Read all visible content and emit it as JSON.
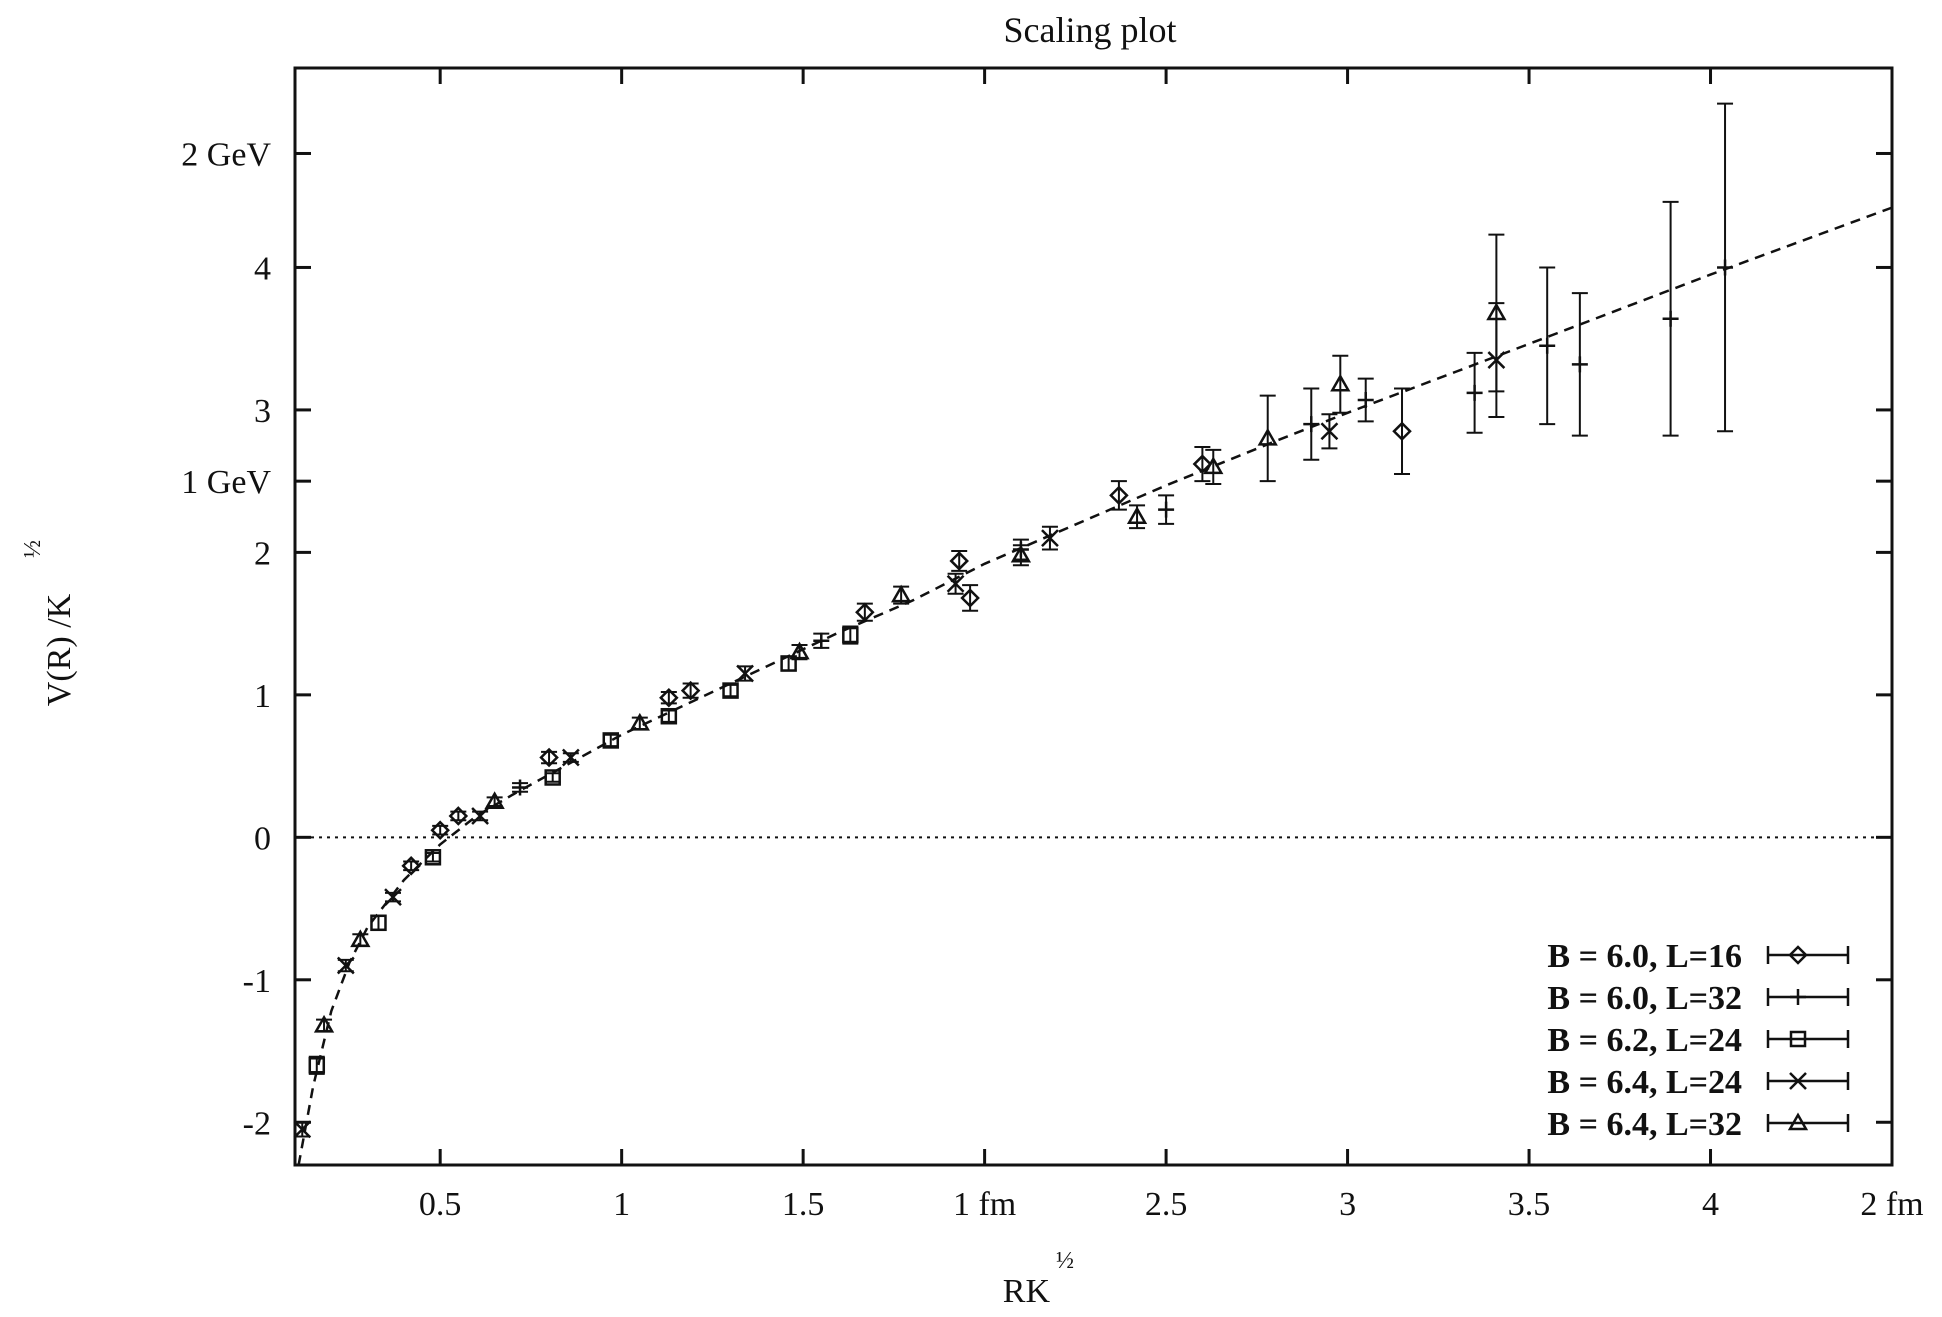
{
  "chart_data": {
    "type": "scatter",
    "title": "Scaling plot",
    "xlabel": "RK",
    "xlabel_exponent": "½",
    "ylabel": "V(R) /K",
    "ylabel_exponent": "½",
    "xlim": [
      0.1,
      4.5
    ],
    "ylim": [
      -2.3,
      5.4
    ],
    "x_ticks": [
      {
        "value": 0.5,
        "label": "0.5"
      },
      {
        "value": 1,
        "label": "1"
      },
      {
        "value": 1.5,
        "label": "1.5"
      },
      {
        "value": 2,
        "label": "1 fm"
      },
      {
        "value": 2.5,
        "label": "2.5"
      },
      {
        "value": 3,
        "label": "3"
      },
      {
        "value": 3.5,
        "label": "3.5"
      },
      {
        "value": 4,
        "label": "4"
      },
      {
        "value": 4.5,
        "label": "2 fm"
      }
    ],
    "y_ticks": [
      {
        "value": -2,
        "label": "-2"
      },
      {
        "value": -1,
        "label": "-1"
      },
      {
        "value": 0,
        "label": "0"
      },
      {
        "value": 1,
        "label": "1"
      },
      {
        "value": 2,
        "label": "2"
      },
      {
        "value": 2.5,
        "label": "1 GeV"
      },
      {
        "value": 3,
        "label": "3"
      },
      {
        "value": 4,
        "label": "4"
      },
      {
        "value": 4.8,
        "label": "2 GeV"
      }
    ],
    "legend_position": "bottom-right",
    "zero_line": true,
    "fit_curve": {
      "style": "dashed",
      "x": [
        0.11,
        0.15,
        0.2,
        0.25,
        0.3,
        0.4,
        0.5,
        0.6,
        0.7,
        0.8,
        1.0,
        1.2,
        1.4,
        1.6,
        1.8,
        2.0,
        2.2,
        2.5,
        2.8,
        3.0,
        3.3,
        3.6,
        4.0,
        4.5
      ],
      "y": [
        -2.3,
        -1.75,
        -1.22,
        -0.88,
        -0.63,
        -0.3,
        -0.05,
        0.15,
        0.3,
        0.44,
        0.72,
        0.96,
        1.2,
        1.44,
        1.66,
        1.92,
        2.14,
        2.47,
        2.78,
        2.98,
        3.27,
        3.56,
        3.95,
        4.42
      ]
    },
    "series": [
      {
        "name": "B = 6.0, L=16",
        "marker": "diamond",
        "points": [
          {
            "x": 0.42,
            "y": -0.2,
            "err": 0.03
          },
          {
            "x": 0.5,
            "y": 0.05,
            "err": 0.03
          },
          {
            "x": 0.55,
            "y": 0.15,
            "err": 0.03
          },
          {
            "x": 0.8,
            "y": 0.56,
            "err": 0.04
          },
          {
            "x": 1.13,
            "y": 0.98,
            "err": 0.04
          },
          {
            "x": 1.19,
            "y": 1.03,
            "err": 0.05
          },
          {
            "x": 1.67,
            "y": 1.58,
            "err": 0.06
          },
          {
            "x": 1.93,
            "y": 1.94,
            "err": 0.07
          },
          {
            "x": 1.96,
            "y": 1.68,
            "err": 0.09
          },
          {
            "x": 2.37,
            "y": 2.4,
            "err": 0.1
          },
          {
            "x": 2.6,
            "y": 2.62,
            "err": 0.12
          },
          {
            "x": 3.15,
            "y": 2.85,
            "err": 0.3
          }
        ]
      },
      {
        "name": "B = 6.0, L=32",
        "marker": "plus",
        "points": [
          {
            "x": 0.72,
            "y": 0.35,
            "err": 0.03
          },
          {
            "x": 1.55,
            "y": 1.38,
            "err": 0.05
          },
          {
            "x": 2.1,
            "y": 2.02,
            "err": 0.07
          },
          {
            "x": 2.5,
            "y": 2.3,
            "err": 0.1
          },
          {
            "x": 2.9,
            "y": 2.9,
            "err": 0.25
          },
          {
            "x": 3.05,
            "y": 3.07,
            "err": 0.15
          },
          {
            "x": 3.35,
            "y": 3.12,
            "err": 0.28
          },
          {
            "x": 3.55,
            "y": 3.45,
            "err": 0.55
          },
          {
            "x": 3.64,
            "y": 3.32,
            "err": 0.5
          },
          {
            "x": 3.89,
            "y": 3.64,
            "err": 0.82
          },
          {
            "x": 4.04,
            "y": 4.0,
            "err": 1.15
          }
        ]
      },
      {
        "name": "B = 6.2, L=24",
        "marker": "square",
        "points": [
          {
            "x": 0.16,
            "y": -1.6,
            "err": 0.06
          },
          {
            "x": 0.33,
            "y": -0.6,
            "err": 0.05
          },
          {
            "x": 0.48,
            "y": -0.14,
            "err": 0.03
          },
          {
            "x": 0.81,
            "y": 0.42,
            "err": 0.03
          },
          {
            "x": 0.97,
            "y": 0.68,
            "err": 0.04
          },
          {
            "x": 1.13,
            "y": 0.85,
            "err": 0.04
          },
          {
            "x": 1.3,
            "y": 1.03,
            "err": 0.04
          },
          {
            "x": 1.46,
            "y": 1.22,
            "err": 0.05
          },
          {
            "x": 1.63,
            "y": 1.42,
            "err": 0.06
          }
        ]
      },
      {
        "name": "B = 6.4, L=24",
        "marker": "cross",
        "points": [
          {
            "x": 0.12,
            "y": -2.05,
            "err": 0.05
          },
          {
            "x": 0.24,
            "y": -0.9,
            "err": 0.04
          },
          {
            "x": 0.37,
            "y": -0.42,
            "err": 0.03
          },
          {
            "x": 0.61,
            "y": 0.15,
            "err": 0.03
          },
          {
            "x": 0.86,
            "y": 0.56,
            "err": 0.03
          },
          {
            "x": 1.34,
            "y": 1.15,
            "err": 0.05
          },
          {
            "x": 1.92,
            "y": 1.78,
            "err": 0.07
          },
          {
            "x": 2.18,
            "y": 2.1,
            "err": 0.08
          },
          {
            "x": 2.95,
            "y": 2.85,
            "err": 0.12
          },
          {
            "x": 3.41,
            "y": 3.35,
            "err": 0.4
          }
        ]
      },
      {
        "name": "B = 6.4, L=32",
        "marker": "triangle",
        "points": [
          {
            "x": 0.18,
            "y": -1.32,
            "err": 0.04
          },
          {
            "x": 0.28,
            "y": -0.72,
            "err": 0.04
          },
          {
            "x": 0.65,
            "y": 0.25,
            "err": 0.03
          },
          {
            "x": 1.05,
            "y": 0.8,
            "err": 0.04
          },
          {
            "x": 1.49,
            "y": 1.3,
            "err": 0.05
          },
          {
            "x": 1.77,
            "y": 1.7,
            "err": 0.06
          },
          {
            "x": 2.1,
            "y": 1.98,
            "err": 0.07
          },
          {
            "x": 2.42,
            "y": 2.25,
            "err": 0.08
          },
          {
            "x": 2.63,
            "y": 2.6,
            "err": 0.12
          },
          {
            "x": 2.78,
            "y": 2.8,
            "err": 0.3
          },
          {
            "x": 2.98,
            "y": 3.18,
            "err": 0.2
          },
          {
            "x": 3.41,
            "y": 3.68,
            "err": 0.55
          }
        ]
      }
    ]
  }
}
